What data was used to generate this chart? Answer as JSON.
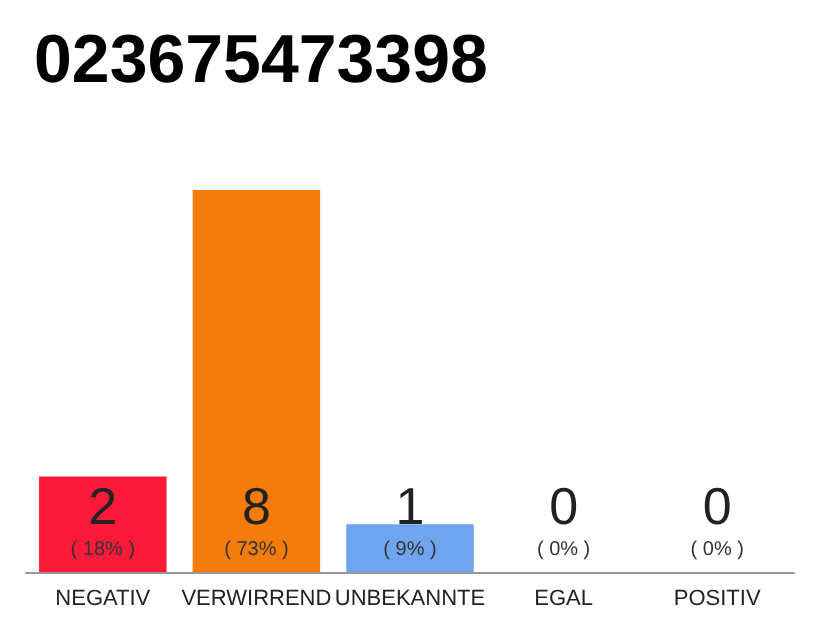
{
  "chart_data": {
    "type": "bar",
    "title": "023675473398",
    "categories": [
      "NEGATIV",
      "VERWIRREND",
      "UNBEKANNTE",
      "EGAL",
      "POSITIV"
    ],
    "values": [
      2,
      8,
      1,
      0,
      0
    ],
    "colors": [
      "#fe1a3b",
      "#f57c0b",
      "#6fa5ef",
      "#d0d0d0",
      "#d0d0d0"
    ],
    "value_labels": [
      "2\n( 18% )",
      "8\n( 73% )",
      "1\n( 9% )",
      "0\n( 0% )",
      "0\n( 0% )"
    ]
  }
}
